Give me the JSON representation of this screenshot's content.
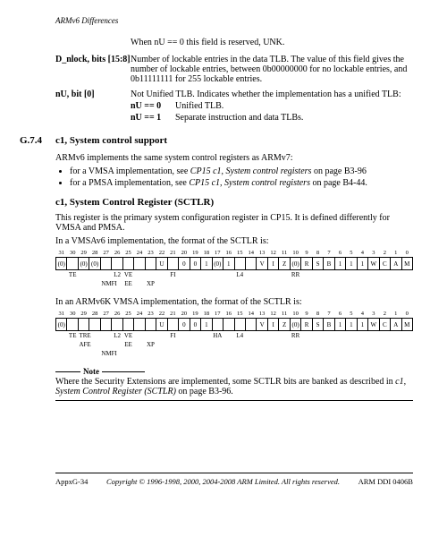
{
  "header": {
    "title": "ARMv6 Differences"
  },
  "intro_line": "When nU == 0 this field is reserved, UNK.",
  "field_dnlock": {
    "label": "D_nlock, bits [15:8]",
    "text": "Number of lockable entries in the data TLB. The value of this field gives the number of lockable entries, between 0b00000000 for no lockable entries, and 0b11111111 for 255 lockable entries."
  },
  "field_nu": {
    "label": "nU, bit [0]",
    "text": "Not Unified TLB. Indicates whether the implementation has a unified TLB:",
    "rows": [
      {
        "k": "nU == 0",
        "v": "Unified TLB."
      },
      {
        "k": "nU == 1",
        "v": "Separate instruction and data TLBs."
      }
    ]
  },
  "section": {
    "num": "G.7.4",
    "title": "c1, System control support"
  },
  "sect_body": {
    "intro": "ARMv6 implements the same system control registers as ARMv7:",
    "bullets": [
      {
        "p": "for a VMSA implementation, see ",
        "i": "CP15 c1, System control registers",
        "s": " on page B3-96"
      },
      {
        "p": "for a PMSA implementation, see ",
        "i": "CP15 c1, System control registers",
        "s": " on page B4-44."
      }
    ]
  },
  "sctlr": {
    "title": "c1, System Control Register (SCTLR)",
    "p1": "This register is the primary system configuration register in CP15. It is defined differently for VMSA and PMSA.",
    "p2": "In a VMSAv6 implementation, the format of the SCTLR is:",
    "p3": "In an ARMv6K VMSA implementation, the format of the SCTLR is:"
  },
  "reg1": {
    "nums": [
      "31",
      "30",
      "29",
      "28",
      "27",
      "26",
      "25",
      "24",
      "23",
      "22",
      "21",
      "20",
      "19",
      "18",
      "17",
      "16",
      "15",
      "14",
      "13",
      "12",
      "11",
      "10",
      "9",
      "8",
      "7",
      "6",
      "5",
      "4",
      "3",
      "2",
      "1",
      "0"
    ],
    "cells": [
      "(0)",
      "",
      "(0)",
      "(0)",
      "",
      "",
      "",
      "",
      "",
      "U",
      "",
      "0",
      "0",
      "1",
      "(0)",
      "1",
      "",
      "",
      "V",
      "I",
      "Z",
      "(0)",
      "R",
      "S",
      "B",
      "1",
      "1",
      "1",
      "W",
      "C",
      "A",
      "M"
    ],
    "labs": [
      "",
      "TE",
      "",
      "",
      "",
      "L2",
      "VE",
      "",
      "",
      "",
      "FI",
      "",
      "",
      "",
      "",
      "",
      "L4",
      "",
      "",
      "",
      "",
      "RR",
      "",
      "",
      "",
      "",
      "",
      "",
      "",
      "",
      "",
      ""
    ],
    "sub": [
      "",
      "",
      "",
      "",
      "NMFI",
      "",
      "EE",
      "",
      "XP",
      "",
      "",
      "",
      "",
      "",
      "",
      "",
      "",
      "",
      "",
      "",
      "",
      "",
      "",
      "",
      "",
      "",
      "",
      "",
      "",
      "",
      "",
      ""
    ]
  },
  "reg2": {
    "nums": [
      "31",
      "30",
      "29",
      "28",
      "27",
      "26",
      "25",
      "24",
      "23",
      "22",
      "21",
      "20",
      "19",
      "18",
      "17",
      "16",
      "15",
      "14",
      "13",
      "12",
      "11",
      "10",
      "9",
      "8",
      "7",
      "6",
      "5",
      "4",
      "3",
      "2",
      "1",
      "0"
    ],
    "cells": [
      "(0)",
      "",
      "",
      "",
      "",
      "",
      "",
      "",
      "",
      "U",
      "",
      "0",
      "0",
      "1",
      "",
      "",
      "",
      "",
      "V",
      "I",
      "Z",
      "(0)",
      "R",
      "S",
      "B",
      "1",
      "1",
      "1",
      "W",
      "C",
      "A",
      "M"
    ],
    "labs": [
      "",
      "TE",
      "TRE",
      "",
      "",
      "L2",
      "VE",
      "",
      "",
      "",
      "FI",
      "",
      "",
      "",
      "HA",
      "",
      "L4",
      "",
      "",
      "",
      "",
      "RR",
      "",
      "",
      "",
      "",
      "",
      "",
      "",
      "",
      "",
      ""
    ],
    "sub": [
      "",
      "",
      "AFE",
      "",
      "",
      "",
      "EE",
      "",
      "XP",
      "",
      "",
      "",
      "",
      "",
      "",
      "",
      "",
      "",
      "",
      "",
      "",
      "",
      "",
      "",
      "",
      "",
      "",
      "",
      "",
      "",
      "",
      ""
    ],
    "sub2": [
      "",
      "",
      "",
      "",
      "NMFI",
      "",
      "",
      "",
      "",
      "",
      "",
      "",
      "",
      "",
      "",
      "",
      "",
      "",
      "",
      "",
      "",
      "",
      "",
      "",
      "",
      "",
      "",
      "",
      "",
      "",
      "",
      ""
    ]
  },
  "note": {
    "label": "Note",
    "text_pre": "Where the Security Extensions are implemented, some SCTLR bits are banked as described in ",
    "text_i": "c1, System Control Register (SCTLR)",
    "text_post": " on page B3-96."
  },
  "footer": {
    "left": "AppxG-34",
    "mid": "Copyright © 1996-1998, 2000, 2004-2008 ARM Limited. All rights reserved.",
    "right": "ARM DDI 0406B"
  }
}
